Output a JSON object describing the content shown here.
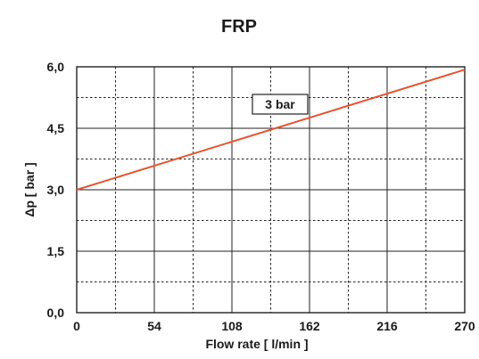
{
  "chart_data": {
    "type": "line",
    "title": "FRP",
    "xlabel": "Flow rate [ l/min ]",
    "ylabel": "Δp [ bar ]",
    "xlim": [
      0,
      270
    ],
    "ylim": [
      0,
      6
    ],
    "x_ticks": [
      "0",
      "54",
      "108",
      "162",
      "216",
      "270"
    ],
    "y_ticks": [
      "0,0",
      "1,5",
      "3,0",
      "4,5",
      "6,0"
    ],
    "grid": true,
    "series": [
      {
        "name": "3 bar",
        "color": "#e8532f",
        "x": [
          0,
          270
        ],
        "y": [
          3.0,
          5.93
        ]
      }
    ],
    "annotations": [
      {
        "text": "3 bar"
      }
    ]
  }
}
